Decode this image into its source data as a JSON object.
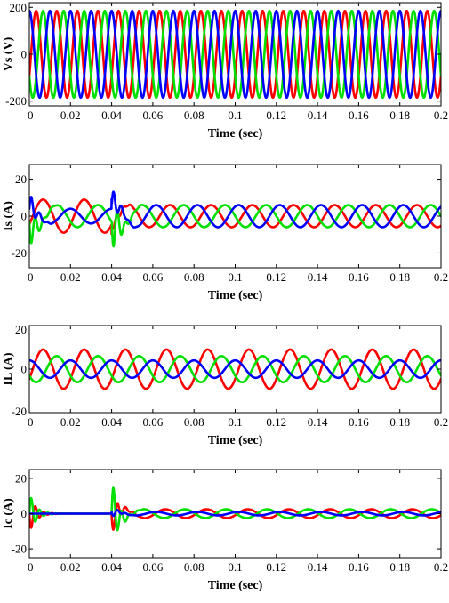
{
  "colors": {
    "red": "#ff0000",
    "green": "#00e000",
    "blue": "#0000ff"
  },
  "chart_data": [
    {
      "type": "line",
      "ylabel": "Vs (V)",
      "xlabel": "Time (sec)",
      "xlim": [
        0,
        0.2
      ],
      "ylim": [
        -220,
        220
      ],
      "xticks": [
        0,
        0.02,
        0.04,
        0.06,
        0.08,
        0.1,
        0.12,
        0.14,
        0.16,
        0.18,
        0.2
      ],
      "xtick_labels": [
        "0",
        "0.02",
        "0.04",
        "0.06",
        "0.08",
        "0.1",
        "0.12",
        "0.14",
        "0.16",
        "0.18",
        "0.2"
      ],
      "yticks": [
        -200,
        0,
        200
      ],
      "ytick_labels": [
        "-200",
        "0",
        "200"
      ],
      "frequency_hz": 100,
      "series": [
        {
          "color": "red",
          "segments": [
            {
              "t_start": 0,
              "t_end": 0.2,
              "amplitude": 185,
              "phase_deg": -30
            }
          ]
        },
        {
          "color": "green",
          "segments": [
            {
              "t_start": 0,
              "t_end": 0.2,
              "amplitude": 185,
              "phase_deg": -150
            }
          ]
        },
        {
          "color": "blue",
          "segments": [
            {
              "t_start": 0,
              "t_end": 0.2,
              "amplitude": 185,
              "phase_deg": 90
            }
          ]
        }
      ]
    },
    {
      "type": "line",
      "ylabel": "Is (A)",
      "xlabel": "Time (sec)",
      "xlim": [
        0,
        0.2
      ],
      "ylim": [
        -28,
        28
      ],
      "xticks": [
        0,
        0.02,
        0.04,
        0.06,
        0.08,
        0.1,
        0.12,
        0.14,
        0.16,
        0.18,
        0.2
      ],
      "xtick_labels": [
        "0",
        "0.02",
        "0.04",
        "0.06",
        "0.08",
        "0.1",
        "0.12",
        "0.14",
        "0.16",
        "0.18",
        "0.2"
      ],
      "yticks": [
        -20,
        0,
        20
      ],
      "ytick_labels": [
        "-20",
        "0",
        "20"
      ],
      "frequency_hz": 50,
      "series": [
        {
          "color": "red",
          "segments": [
            {
              "t_start": 0,
              "t_end": 0.04,
              "amplitude": 9,
              "phase_deg": -30
            },
            {
              "t_start": 0.04,
              "t_end": 0.2,
              "amplitude": 6,
              "phase_deg": -60
            }
          ],
          "transients": [
            {
              "t0": 0.04,
              "amp": 3,
              "tau": 0.004,
              "freq": 300,
              "dir": -1
            }
          ]
        },
        {
          "color": "green",
          "segments": [
            {
              "t_start": 0,
              "t_end": 0.04,
              "amplitude": 6,
              "phase_deg": -150
            },
            {
              "t_start": 0.04,
              "t_end": 0.2,
              "amplitude": 6,
              "phase_deg": 180
            }
          ],
          "transients": [
            {
              "t0": 0,
              "amp": 14,
              "tau": 0.003,
              "freq": 250,
              "dir": -1
            },
            {
              "t0": 0.04,
              "amp": 20,
              "tau": 0.003,
              "freq": 260,
              "dir": -1
            }
          ]
        },
        {
          "color": "blue",
          "segments": [
            {
              "t_start": 0,
              "t_end": 0.04,
              "amplitude": 4,
              "phase_deg": 90
            },
            {
              "t_start": 0.04,
              "t_end": 0.2,
              "amplitude": 6,
              "phase_deg": 60
            }
          ],
          "transients": [
            {
              "t0": 0,
              "amp": 9,
              "tau": 0.003,
              "freq": 250,
              "dir": 1
            },
            {
              "t0": 0.04,
              "amp": 10,
              "tau": 0.003,
              "freq": 260,
              "dir": 1
            }
          ]
        }
      ]
    },
    {
      "type": "line",
      "ylabel": "IL (A)",
      "xlabel": "Time (sec)",
      "xlim": [
        0,
        0.2
      ],
      "ylim": [
        -20,
        20
      ],
      "xticks": [
        0,
        0.02,
        0.04,
        0.06,
        0.08,
        0.1,
        0.12,
        0.14,
        0.16,
        0.18,
        0.2
      ],
      "xtick_labels": [
        "0",
        "0.02",
        "0.04",
        "0.06",
        "0.08",
        "0.1",
        "0.12",
        "0.14",
        "0.16",
        "0.18",
        "0.2"
      ],
      "yticks": [
        -20,
        0,
        20
      ],
      "ytick_labels": [
        "-20",
        "0",
        "20"
      ],
      "frequency_hz": 50,
      "series": [
        {
          "color": "red",
          "segments": [
            {
              "t_start": 0,
              "t_end": 0.2,
              "amplitude": 9,
              "phase_deg": -30
            }
          ]
        },
        {
          "color": "green",
          "segments": [
            {
              "t_start": 0,
              "t_end": 0.2,
              "amplitude": 6,
              "phase_deg": -150
            }
          ]
        },
        {
          "color": "blue",
          "segments": [
            {
              "t_start": 0,
              "t_end": 0.2,
              "amplitude": 4,
              "phase_deg": 90
            }
          ]
        }
      ]
    },
    {
      "type": "line",
      "ylabel": "Ic (A)",
      "xlabel": "Time (sec)",
      "xlim": [
        0,
        0.2
      ],
      "ylim": [
        -25,
        25
      ],
      "xticks": [
        0,
        0.02,
        0.04,
        0.06,
        0.08,
        0.1,
        0.12,
        0.14,
        0.16,
        0.18,
        0.2
      ],
      "xtick_labels": [
        "0",
        "0.02",
        "0.04",
        "0.06",
        "0.08",
        "0.1",
        "0.12",
        "0.14",
        "0.16",
        "0.18",
        "0.2"
      ],
      "yticks": [
        -20,
        0,
        20
      ],
      "ytick_labels": [
        "-20",
        "0",
        "20"
      ],
      "frequency_hz": 50,
      "series": [
        {
          "color": "red",
          "segments": [
            {
              "t_start": 0.04,
              "t_end": 0.2,
              "amplitude": 2.5,
              "phase_deg": -20
            }
          ],
          "transients": [
            {
              "t0": 0,
              "amp": 11,
              "tau": 0.003,
              "freq": 250,
              "dir": -1
            },
            {
              "t0": 0.04,
              "amp": 12,
              "tau": 0.003,
              "freq": 260,
              "dir": -1
            }
          ]
        },
        {
          "color": "green",
          "segments": [
            {
              "t_start": 0.04,
              "t_end": 0.2,
              "amplitude": 2.5,
              "phase_deg": 170
            }
          ],
          "transients": [
            {
              "t0": 0,
              "amp": 12,
              "tau": 0.003,
              "freq": 250,
              "dir": 1
            },
            {
              "t0": 0.04,
              "amp": 20,
              "tau": 0.003,
              "freq": 260,
              "dir": 1
            }
          ]
        },
        {
          "color": "blue",
          "segments": [
            {
              "t_start": 0.04,
              "t_end": 0.2,
              "amplitude": 1,
              "phase_deg": 60
            }
          ],
          "transients": [
            {
              "t0": 0.04,
              "amp": 3,
              "tau": 0.003,
              "freq": 260,
              "dir": -1
            }
          ]
        }
      ]
    }
  ]
}
